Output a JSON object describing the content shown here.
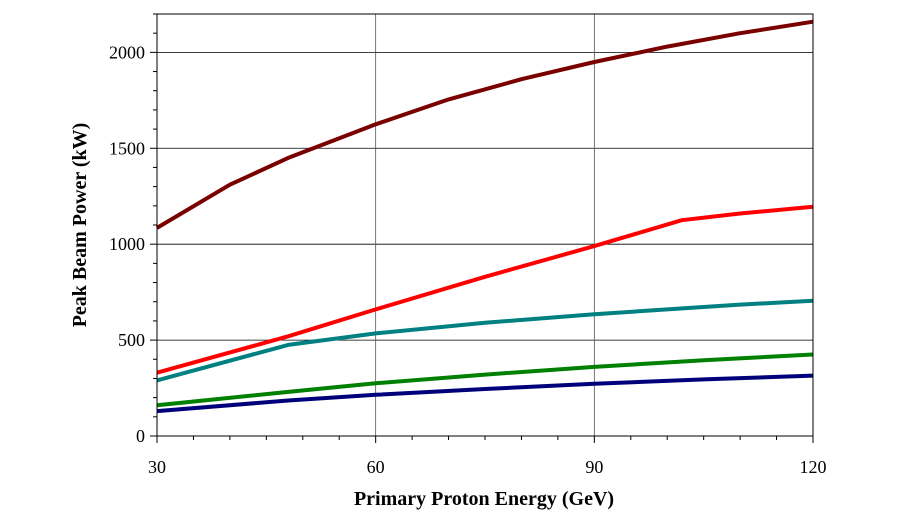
{
  "chart_data": {
    "type": "line",
    "title": "",
    "xlabel": "Primary Proton Energy (GeV)",
    "ylabel": "Peak Beam Power (kW)",
    "xlim": [
      30,
      120
    ],
    "ylim": [
      0,
      2200
    ],
    "x_major_ticks": [
      30,
      60,
      90,
      120
    ],
    "x_tick_labels": [
      "30",
      "60",
      "90",
      "120"
    ],
    "x_minor_step": 5,
    "y_major_ticks": [
      0,
      500,
      1000,
      1500,
      2000
    ],
    "y_tick_labels": [
      "0",
      "500",
      "1000",
      "1500",
      "2000"
    ],
    "y_minor_step": 100,
    "grid": true,
    "legend": "none",
    "series": [
      {
        "color": "#7a0000",
        "x": [
          30,
          40,
          48,
          60,
          70,
          80,
          90,
          100,
          110,
          120
        ],
        "y": [
          1085,
          1310,
          1450,
          1625,
          1755,
          1860,
          1950,
          2030,
          2100,
          2160
        ]
      },
      {
        "color": "#ff0000",
        "x": [
          30,
          48,
          60,
          75,
          90,
          102,
          110,
          120
        ],
        "y": [
          330,
          520,
          660,
          830,
          990,
          1125,
          1160,
          1195
        ]
      },
      {
        "color": "#008080",
        "x": [
          30,
          48,
          60,
          75,
          90,
          100,
          110,
          120
        ],
        "y": [
          290,
          475,
          535,
          590,
          635,
          660,
          685,
          705
        ]
      },
      {
        "color": "#008000",
        "x": [
          30,
          48,
          60,
          75,
          90,
          105,
          120
        ],
        "y": [
          160,
          230,
          275,
          320,
          360,
          395,
          425
        ]
      },
      {
        "color": "#00007a",
        "x": [
          30,
          48,
          60,
          75,
          90,
          105,
          120
        ],
        "y": [
          130,
          185,
          215,
          245,
          272,
          295,
          315
        ]
      }
    ]
  }
}
